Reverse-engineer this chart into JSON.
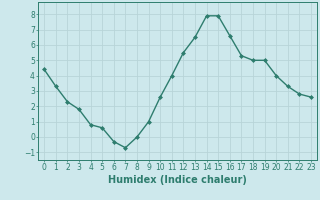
{
  "x": [
    0,
    1,
    2,
    3,
    4,
    5,
    6,
    7,
    8,
    9,
    10,
    11,
    12,
    13,
    14,
    15,
    16,
    17,
    18,
    19,
    20,
    21,
    22,
    23
  ],
  "y": [
    4.4,
    3.3,
    2.3,
    1.8,
    0.8,
    0.6,
    -0.3,
    -0.7,
    0.0,
    1.0,
    2.6,
    4.0,
    5.5,
    6.5,
    7.9,
    7.9,
    6.6,
    5.3,
    5.0,
    5.0,
    4.0,
    3.3,
    2.8,
    2.6
  ],
  "line_color": "#2e7d6e",
  "marker": "D",
  "marker_size": 2.0,
  "line_width": 1.0,
  "bg_color": "#cde8ec",
  "grid_color": "#b8d4d8",
  "xlabel": "Humidex (Indice chaleur)",
  "ylim": [
    -1.5,
    8.8
  ],
  "xlim": [
    -0.5,
    23.5
  ],
  "yticks": [
    -1,
    0,
    1,
    2,
    3,
    4,
    5,
    6,
    7,
    8
  ],
  "xticks": [
    0,
    1,
    2,
    3,
    4,
    5,
    6,
    7,
    8,
    9,
    10,
    11,
    12,
    13,
    14,
    15,
    16,
    17,
    18,
    19,
    20,
    21,
    22,
    23
  ],
  "tick_fontsize": 5.5,
  "xlabel_fontsize": 7.0,
  "tick_color": "#2e7d6e",
  "axis_color": "#2e7d6e"
}
